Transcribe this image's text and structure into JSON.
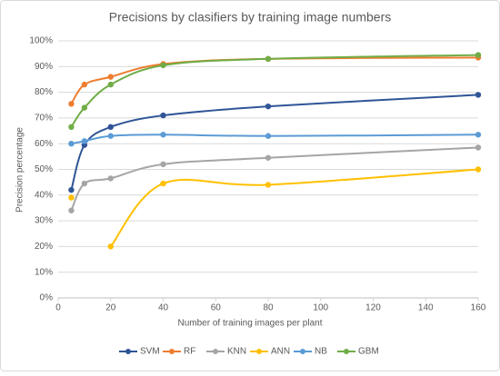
{
  "chart_data": {
    "type": "line",
    "title": "Precisions by clasifiers by training image numbers",
    "x_label": "Number of training images per plant",
    "y_label": "Precision percentage",
    "x": [
      5,
      10,
      20,
      40,
      80,
      160
    ],
    "xlim": [
      0,
      160
    ],
    "xticks": [
      0,
      20,
      40,
      60,
      80,
      100,
      120,
      140,
      160
    ],
    "ylim": [
      0,
      100
    ],
    "yticks": [
      {
        "value": 0,
        "label": "0%"
      },
      {
        "value": 10,
        "label": "10%"
      },
      {
        "value": 20,
        "label": "20%"
      },
      {
        "value": 30,
        "label": "30%"
      },
      {
        "value": 40,
        "label": "40%"
      },
      {
        "value": 50,
        "label": "50%"
      },
      {
        "value": 60,
        "label": "60%"
      },
      {
        "value": 70,
        "label": "70%"
      },
      {
        "value": 80,
        "label": "80%"
      },
      {
        "value": 90,
        "label": "90%"
      },
      {
        "value": 100,
        "label": "100%"
      }
    ],
    "grid": true,
    "smooth": true,
    "legend": "bottom",
    "series": [
      {
        "name": "SVM",
        "color": "#2f5597",
        "values": [
          42,
          59.5,
          66.5,
          71,
          74.5,
          79
        ]
      },
      {
        "name": "RF",
        "color": "#ed7d31",
        "values": [
          75.5,
          83,
          86,
          91,
          93,
          93.5
        ]
      },
      {
        "name": "KNN",
        "color": "#a5a5a5",
        "values": [
          34,
          44.5,
          46.5,
          52,
          54.5,
          58.5
        ]
      },
      {
        "name": "ANN",
        "color": "#ffc000",
        "values": [
          39,
          null,
          20,
          44.5,
          44,
          50
        ]
      },
      {
        "name": "NB",
        "color": "#5b9bd5",
        "values": [
          60,
          61,
          63,
          63.5,
          63,
          63.5
        ]
      },
      {
        "name": "GBM",
        "color": "#70ad47",
        "values": [
          66.5,
          74,
          83,
          90.5,
          93,
          94.5
        ]
      }
    ]
  }
}
